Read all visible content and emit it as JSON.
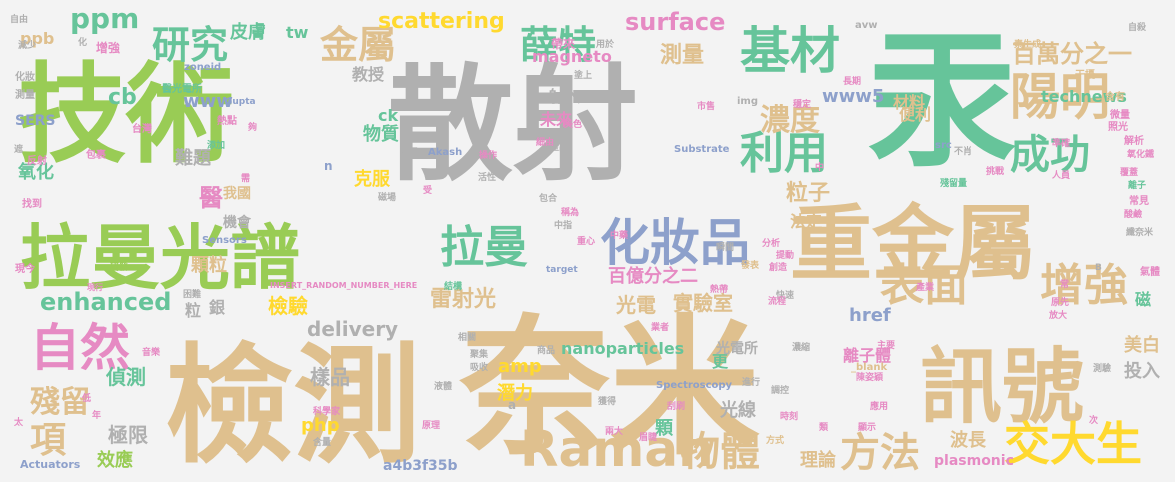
{
  "palette": {
    "green": "#99cc55",
    "gray": "#b0b0b0",
    "teal": "#66c49a",
    "tan": "#dfc08e",
    "blue": "#8da0cb",
    "pink": "#e68ac3",
    "yellow": "#ffd92f",
    "background": "#f3f3f3"
  },
  "words": [
    {
      "text": "技術",
      "color": "green"
    },
    {
      "text": "散射",
      "color": "gray"
    },
    {
      "text": "汞",
      "color": "teal"
    },
    {
      "text": "檢測",
      "color": "tan"
    },
    {
      "text": "奈米",
      "color": "tan"
    },
    {
      "text": "重金屬",
      "color": "tan"
    },
    {
      "text": "拉曼光譜",
      "color": "green"
    },
    {
      "text": "訊號",
      "color": "tan"
    },
    {
      "text": "基材",
      "color": "teal"
    },
    {
      "text": "陽明",
      "color": "tan"
    },
    {
      "text": "化妝品",
      "color": "blue"
    },
    {
      "text": "拉曼",
      "color": "teal"
    },
    {
      "text": "表面",
      "color": "tan"
    },
    {
      "text": "增強",
      "color": "tan"
    },
    {
      "text": "自然",
      "color": "pink"
    },
    {
      "text": "Raman",
      "color": "tan"
    },
    {
      "text": "交大生",
      "color": "yellow"
    },
    {
      "text": "物體",
      "color": "tan"
    },
    {
      "text": "方法",
      "color": "tan"
    },
    {
      "text": "利用",
      "color": "teal"
    },
    {
      "text": "成功",
      "color": "teal"
    },
    {
      "text": "研究",
      "color": "teal"
    },
    {
      "text": "金屬",
      "color": "tan"
    },
    {
      "text": "薛特",
      "color": "teal"
    },
    {
      "text": "濃度",
      "color": "tan"
    },
    {
      "text": "殘留",
      "color": "tan"
    },
    {
      "text": "項",
      "color": "tan"
    },
    {
      "text": "百萬分之一",
      "color": "tan"
    },
    {
      "text": "ppm",
      "color": "teal"
    },
    {
      "text": "surface",
      "color": "pink"
    },
    {
      "text": "scattering",
      "color": "yellow"
    },
    {
      "text": "測量",
      "color": "tan"
    },
    {
      "text": "enhanced",
      "color": "teal"
    },
    {
      "text": "雷射光",
      "color": "tan"
    },
    {
      "text": "百億分之二",
      "color": "pink"
    },
    {
      "text": "粒子",
      "color": "tan"
    },
    {
      "text": "皮膚",
      "color": "teal"
    },
    {
      "text": "www5",
      "color": "blue"
    },
    {
      "text": "tw",
      "color": "teal"
    },
    {
      "text": "delivery",
      "color": "gray"
    },
    {
      "text": "實驗室",
      "color": "tan"
    },
    {
      "text": "檢驗",
      "color": "yellow"
    },
    {
      "text": "樣品",
      "color": "gray"
    },
    {
      "text": "極限",
      "color": "gray"
    },
    {
      "text": "偵測",
      "color": "teal"
    },
    {
      "text": "光電",
      "color": "tan"
    },
    {
      "text": "潛力",
      "color": "yellow"
    },
    {
      "text": "光線",
      "color": "gray"
    },
    {
      "text": "波長",
      "color": "tan"
    },
    {
      "text": "理論",
      "color": "tan"
    },
    {
      "text": "美白",
      "color": "tan"
    },
    {
      "text": "投入",
      "color": "gray"
    },
    {
      "text": "離子體",
      "color": "pink"
    },
    {
      "text": "amp",
      "color": "yellow"
    },
    {
      "text": "href",
      "color": "blue"
    },
    {
      "text": "nanoparticles",
      "color": "teal"
    },
    {
      "text": "php",
      "color": "yellow"
    },
    {
      "text": "效應",
      "color": "green"
    },
    {
      "text": "醫",
      "color": "pink"
    },
    {
      "text": "顆粒",
      "color": "tan"
    },
    {
      "text": "難題",
      "color": "gray"
    },
    {
      "text": "物質",
      "color": "teal"
    },
    {
      "text": "氧化",
      "color": "teal"
    },
    {
      "text": "ppb",
      "color": "tan"
    },
    {
      "text": "cb",
      "color": "teal"
    },
    {
      "text": "www",
      "color": "blue"
    },
    {
      "text": "教授",
      "color": "gray"
    },
    {
      "text": "ck",
      "color": "teal"
    },
    {
      "text": "射入",
      "color": "gray"
    },
    {
      "text": "未來",
      "color": "pink"
    },
    {
      "text": "克服",
      "color": "yellow"
    },
    {
      "text": "magneto",
      "color": "pink"
    },
    {
      "text": "材料",
      "color": "tan"
    },
    {
      "text": "technews",
      "color": "teal"
    },
    {
      "text": "便利",
      "color": "tan"
    },
    {
      "text": "法定",
      "color": "tan"
    },
    {
      "text": "顆",
      "color": "teal"
    },
    {
      "text": "更",
      "color": "teal"
    },
    {
      "text": "銀",
      "color": "gray"
    },
    {
      "text": "粒",
      "color": "gray"
    },
    {
      "text": "我國",
      "color": "tan"
    },
    {
      "text": "機會",
      "color": "gray"
    },
    {
      "text": "光電所",
      "color": "gray"
    },
    {
      "text": "plasmonic",
      "color": "pink"
    },
    {
      "text": "a4b3f35b",
      "color": "blue"
    },
    {
      "text": "SERS",
      "color": "blue"
    },
    {
      "text": "Actuators",
      "color": "blue"
    },
    {
      "text": "Spectroscopy",
      "color": "blue"
    },
    {
      "text": "Akash",
      "color": "blue"
    },
    {
      "text": "Gupta",
      "color": "blue"
    },
    {
      "text": "INSERT_RANDOM_NUMBER_HERE",
      "color": "pink"
    },
    {
      "text": "target",
      "color": "blue"
    },
    {
      "text": "Sensors",
      "color": "blue"
    },
    {
      "text": "Substrate",
      "color": "blue"
    },
    {
      "text": "zoneid",
      "color": "blue"
    },
    {
      "text": "_blank",
      "color": "tan"
    },
    {
      "text": "img",
      "color": "gray"
    },
    {
      "text": "src",
      "color": "blue"
    },
    {
      "text": "avw",
      "color": "gray"
    },
    {
      "text": "n",
      "color": "blue"
    },
    {
      "text": "a",
      "color": "gray"
    },
    {
      "text": "增強",
      "color": "pink"
    },
    {
      "text": "帶來",
      "color": "pink"
    },
    {
      "text": "醫光電所",
      "color": "teal"
    },
    {
      "text": "熱點",
      "color": "pink"
    },
    {
      "text": "減少",
      "color": "gray"
    },
    {
      "text": "化妝",
      "color": "gray"
    },
    {
      "text": "測量",
      "color": "gray"
    },
    {
      "text": "自由",
      "color": "gray"
    },
    {
      "text": "台灣",
      "color": "pink"
    },
    {
      "text": "反射",
      "color": "pink"
    },
    {
      "text": "找到",
      "color": "pink"
    },
    {
      "text": "包裹",
      "color": "pink"
    },
    {
      "text": "添加",
      "color": "teal"
    },
    {
      "text": "研發",
      "color": "green"
    },
    {
      "text": "現今",
      "color": "pink"
    },
    {
      "text": "現行",
      "color": "pink"
    },
    {
      "text": "長期",
      "color": "pink"
    },
    {
      "text": "常見",
      "color": "pink"
    },
    {
      "text": "酸鹼",
      "color": "pink"
    },
    {
      "text": "氣體",
      "color": "pink"
    },
    {
      "text": "磁",
      "color": "teal"
    },
    {
      "text": "原先",
      "color": "pink"
    },
    {
      "text": "放大",
      "color": "pink"
    },
    {
      "text": "素生成",
      "color": "tan"
    },
    {
      "text": "干擾",
      "color": "tan"
    },
    {
      "text": "含有",
      "color": "tan"
    },
    {
      "text": "微量",
      "color": "pink"
    },
    {
      "text": "照光",
      "color": "pink"
    },
    {
      "text": "氧化鐵",
      "color": "pink"
    },
    {
      "text": "解析",
      "color": "pink"
    },
    {
      "text": "覆蓋",
      "color": "pink"
    },
    {
      "text": "離子",
      "color": "teal"
    },
    {
      "text": "纖奈米",
      "color": "gray"
    },
    {
      "text": "人員",
      "color": "pink"
    },
    {
      "text": "挑戰",
      "color": "pink"
    },
    {
      "text": "殘留量",
      "color": "teal"
    },
    {
      "text": "市售",
      "color": "pink"
    },
    {
      "text": "穩定",
      "color": "pink"
    },
    {
      "text": "準確",
      "color": "pink"
    },
    {
      "text": "產品",
      "color": "gray"
    },
    {
      "text": "美色",
      "color": "pink"
    },
    {
      "text": "細由",
      "color": "pink"
    },
    {
      "text": "操作",
      "color": "pink"
    },
    {
      "text": "墨層",
      "color": "gray"
    },
    {
      "text": "磁場",
      "color": "gray"
    },
    {
      "text": "包合",
      "color": "gray"
    },
    {
      "text": "稱為",
      "color": "pink"
    },
    {
      "text": "重心",
      "color": "pink"
    },
    {
      "text": "發表",
      "color": "tan"
    },
    {
      "text": "創造",
      "color": "pink"
    },
    {
      "text": "分析",
      "color": "pink"
    },
    {
      "text": "提動",
      "color": "pink"
    },
    {
      "text": "快速",
      "color": "gray"
    },
    {
      "text": "產業",
      "color": "pink"
    },
    {
      "text": "流程",
      "color": "pink"
    },
    {
      "text": "業者",
      "color": "pink"
    },
    {
      "text": "商品",
      "color": "gray"
    },
    {
      "text": "聚集",
      "color": "gray"
    },
    {
      "text": "吸收",
      "color": "gray"
    },
    {
      "text": "結構",
      "color": "teal"
    },
    {
      "text": "相關",
      "color": "gray"
    },
    {
      "text": "液體",
      "color": "gray"
    },
    {
      "text": "科學家",
      "color": "pink"
    },
    {
      "text": "含量",
      "color": "gray"
    },
    {
      "text": "原理",
      "color": "pink"
    },
    {
      "text": "兩大",
      "color": "pink"
    },
    {
      "text": "眉睫",
      "color": "pink"
    },
    {
      "text": "方式",
      "color": "tan"
    },
    {
      "text": "時刻",
      "color": "pink"
    },
    {
      "text": "顯示",
      "color": "pink"
    },
    {
      "text": "應用",
      "color": "pink"
    },
    {
      "text": "調控",
      "color": "gray"
    },
    {
      "text": "測驗",
      "color": "gray"
    },
    {
      "text": "主要",
      "color": "pink"
    },
    {
      "text": "刮刷",
      "color": "pink"
    },
    {
      "text": "低",
      "color": "pink"
    },
    {
      "text": "年",
      "color": "pink"
    },
    {
      "text": "太",
      "color": "pink"
    },
    {
      "text": "遮",
      "color": "gray"
    },
    {
      "text": "化",
      "color": "gray"
    },
    {
      "text": "夠",
      "color": "pink"
    },
    {
      "text": "需",
      "color": "pink"
    },
    {
      "text": "受",
      "color": "pink"
    },
    {
      "text": "類",
      "color": "pink"
    },
    {
      "text": "次",
      "color": "pink"
    },
    {
      "text": "中",
      "color": "pink"
    },
    {
      "text": "不肖",
      "color": "gray"
    },
    {
      "text": "自殺",
      "color": "gray"
    },
    {
      "text": "用於",
      "color": "gray"
    },
    {
      "text": "塗上",
      "color": "gray"
    },
    {
      "text": "中指",
      "color": "gray"
    },
    {
      "text": "困難",
      "color": "gray"
    },
    {
      "text": "音樂",
      "color": "pink"
    },
    {
      "text": "陳姿穎",
      "color": "pink"
    },
    {
      "text": "熱帶",
      "color": "pink"
    },
    {
      "text": "常",
      "color": "pink"
    },
    {
      "text": "B",
      "color": "gray"
    },
    {
      "text": "活性",
      "color": "gray"
    },
    {
      "text": "瞬間",
      "color": "gray"
    },
    {
      "text": "濃縮",
      "color": "gray"
    },
    {
      "text": "進行",
      "color": "gray"
    },
    {
      "text": "獲得",
      "color": "gray"
    },
    {
      "text": "中藥",
      "color": "pink"
    }
  ]
}
